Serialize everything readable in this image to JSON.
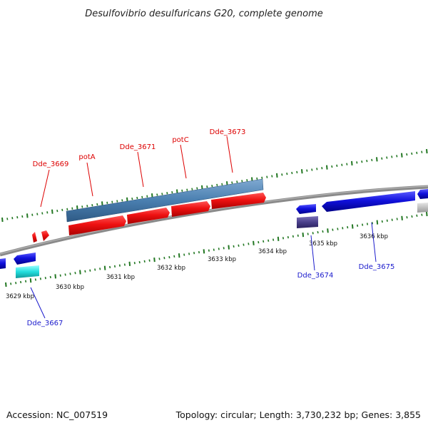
{
  "title": "Desulfovibrio desulfuricans G20, complete genome",
  "footer": {
    "accession": "Accession: NC_007519",
    "summary": "Topology: circular; Length: 3,730,232 bp; Genes: 3,855"
  },
  "scale_labels": [
    "3629 kbp",
    "3630 kbp",
    "3631 kbp",
    "3632 kbp",
    "3633 kbp",
    "3634 kbp",
    "3635 kbp",
    "3636 kbp"
  ],
  "gene_labels": {
    "forward": [
      "Dde_3669",
      "potA",
      "Dde_3671",
      "potC",
      "Dde_3673"
    ],
    "reverse": [
      "Dde_3667",
      "Dde_3674",
      "Dde_3675"
    ]
  },
  "colors": {
    "forward_gene": "#ee1111",
    "forward_operon_bar": "#4a7fb0",
    "reverse_gene": "#1111dd",
    "backbone": "#888888",
    "tick": "#227722",
    "cyan_feature": "#22dddd",
    "purple_feature": "#4a3f8a",
    "gray_feature": "#bbbbbb"
  }
}
